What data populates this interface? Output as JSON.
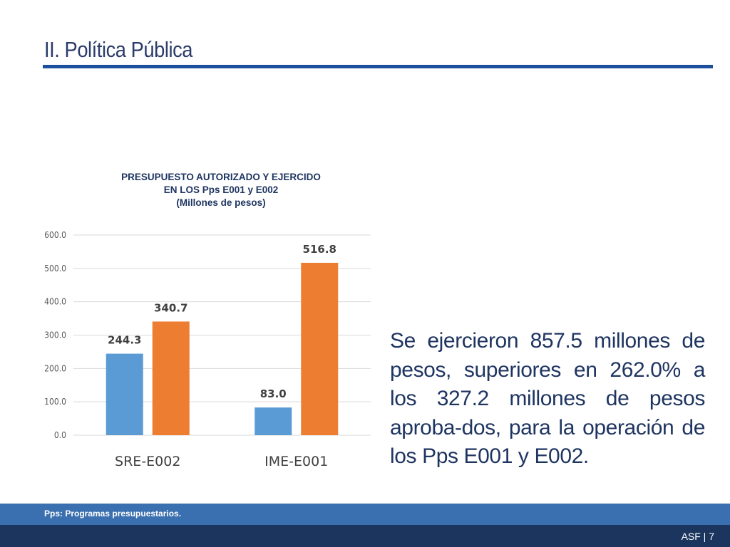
{
  "slide": {
    "title": "II. Política Pública",
    "footnote": "Pps: Programas presupuestarios.",
    "footer": "ASF | 7"
  },
  "colors": {
    "series_autorizado": "#5b9bd5",
    "series_ejercido": "#ed7d31",
    "title_rule": "#1e4f9c",
    "footer_bar": "#1b355e",
    "footnote_bar": "#3a6fb0"
  },
  "chart_data": {
    "type": "bar",
    "title_lines": [
      "PRESUPUESTO AUTORIZADO Y EJERCIDO",
      "EN LOS Pps E001 y E002",
      "(Millones de pesos)"
    ],
    "categories": [
      "SRE-E002",
      "IME-E001"
    ],
    "series": [
      {
        "values": [
          244.3,
          83.0
        ],
        "labels": [
          "244.3",
          "83.0"
        ]
      },
      {
        "values": [
          340.7,
          516.8
        ],
        "labels": [
          "340.7",
          "516.8"
        ]
      }
    ],
    "y_ticks": [
      "0.0",
      "100.0",
      "200.0",
      "300.0",
      "400.0",
      "500.0",
      "600.0"
    ],
    "ylim": [
      0,
      600
    ],
    "grid": true,
    "legend": "none"
  },
  "summary": {
    "text": "Se ejercieron 857.5 millones de pesos, superiores en 262.0% a los 327.2 millones de pesos aproba-dos, para la operación de los Pps E001 y E002."
  }
}
